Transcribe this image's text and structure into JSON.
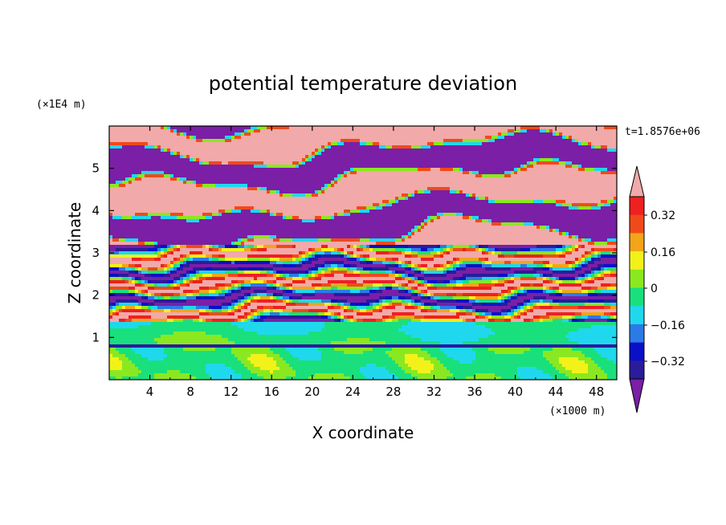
{
  "chart_data": {
    "type": "heatmap",
    "title": "potential temperature deviation",
    "xlabel": "X coordinate",
    "ylabel": "Z coordinate",
    "x_unit": "(×1000 m)",
    "y_unit": "(×1E4 m)",
    "time_label": "t=1.8576e+06",
    "xlim": [
      0,
      50
    ],
    "ylim": [
      0,
      6
    ],
    "x_ticks": [
      4,
      8,
      12,
      16,
      20,
      24,
      28,
      32,
      36,
      40,
      44,
      48
    ],
    "y_ticks": [
      1,
      2,
      3,
      4,
      5
    ],
    "colorbar": {
      "levels": [
        -0.4,
        -0.32,
        -0.24,
        -0.16,
        -0.08,
        0,
        0.08,
        0.16,
        0.24,
        0.32,
        0.4
      ],
      "colors": [
        "#7a1fa6",
        "#2a1c9a",
        "#0a10c8",
        "#2a7be6",
        "#1fd8ee",
        "#19e07c",
        "#8ae821",
        "#f2f21a",
        "#f2a51a",
        "#f04a1a",
        "#ee2020",
        "#f2a9a9"
      ],
      "labels": [
        "0.32",
        "0.16",
        "0",
        "−0.16",
        "−0.32"
      ],
      "extend": "both"
    }
  }
}
